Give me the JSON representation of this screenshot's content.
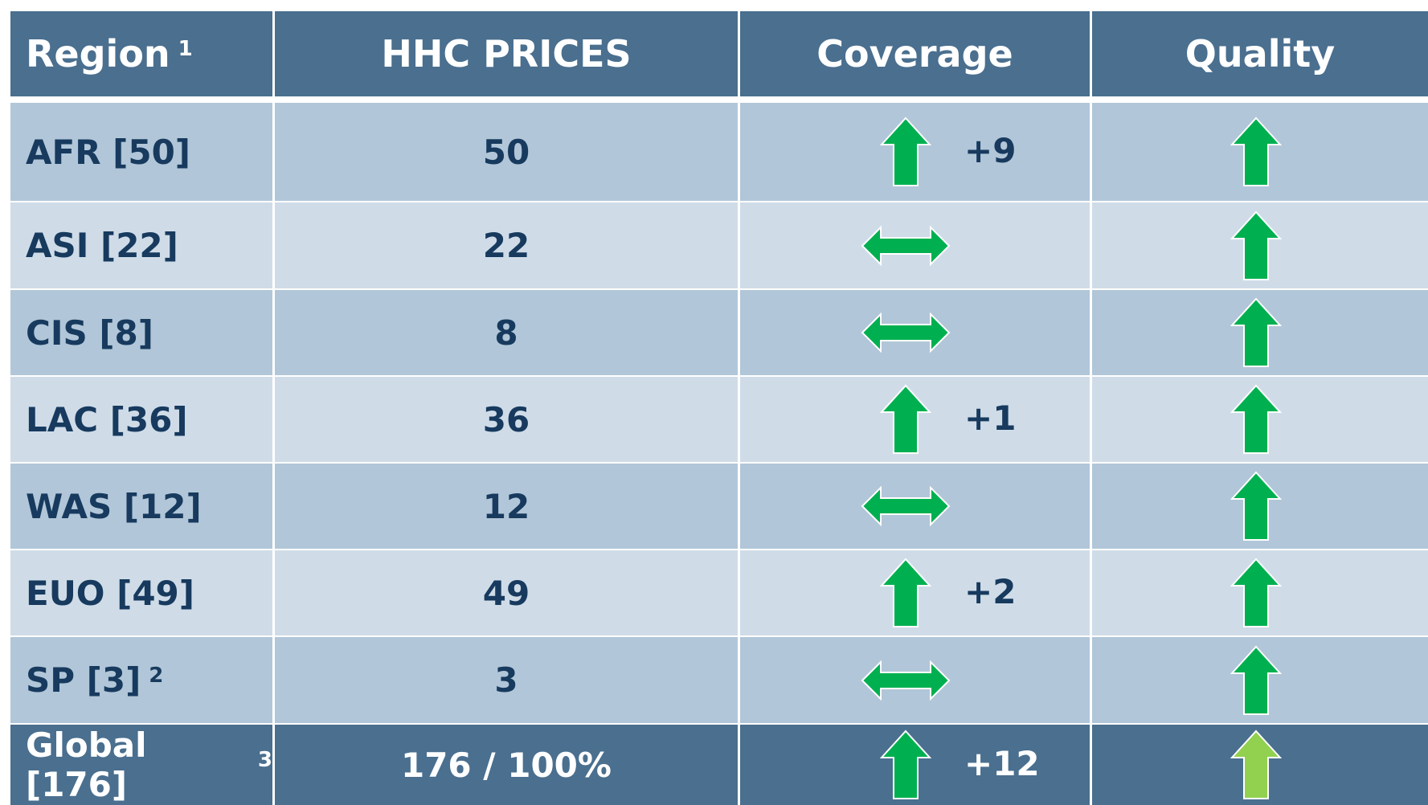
{
  "header": {
    "columns": [
      "Region",
      "HHC PRICES",
      "Coverage",
      "Quality"
    ],
    "region_note": "1"
  },
  "rows": [
    {
      "region": "AFR [50]",
      "prices": 50,
      "coverage": "+9"
    },
    {
      "region": "ASI [22]",
      "prices": 22
    },
    {
      "region": "CIS [8]",
      "prices": 8
    },
    {
      "region": "LAC [36]",
      "prices": 36,
      "coverage": "+1"
    },
    {
      "region": "WAS [12]",
      "prices": 12
    },
    {
      "region": "EUO [49]",
      "prices": 49,
      "coverage": "+2"
    },
    {
      "region": "SP [3]",
      "note": "2",
      "prices": 3
    }
  ],
  "total": {
    "region": "Global [176]",
    "note": "3",
    "prices": "176 / 100%",
    "coverage": "+12"
  }
}
